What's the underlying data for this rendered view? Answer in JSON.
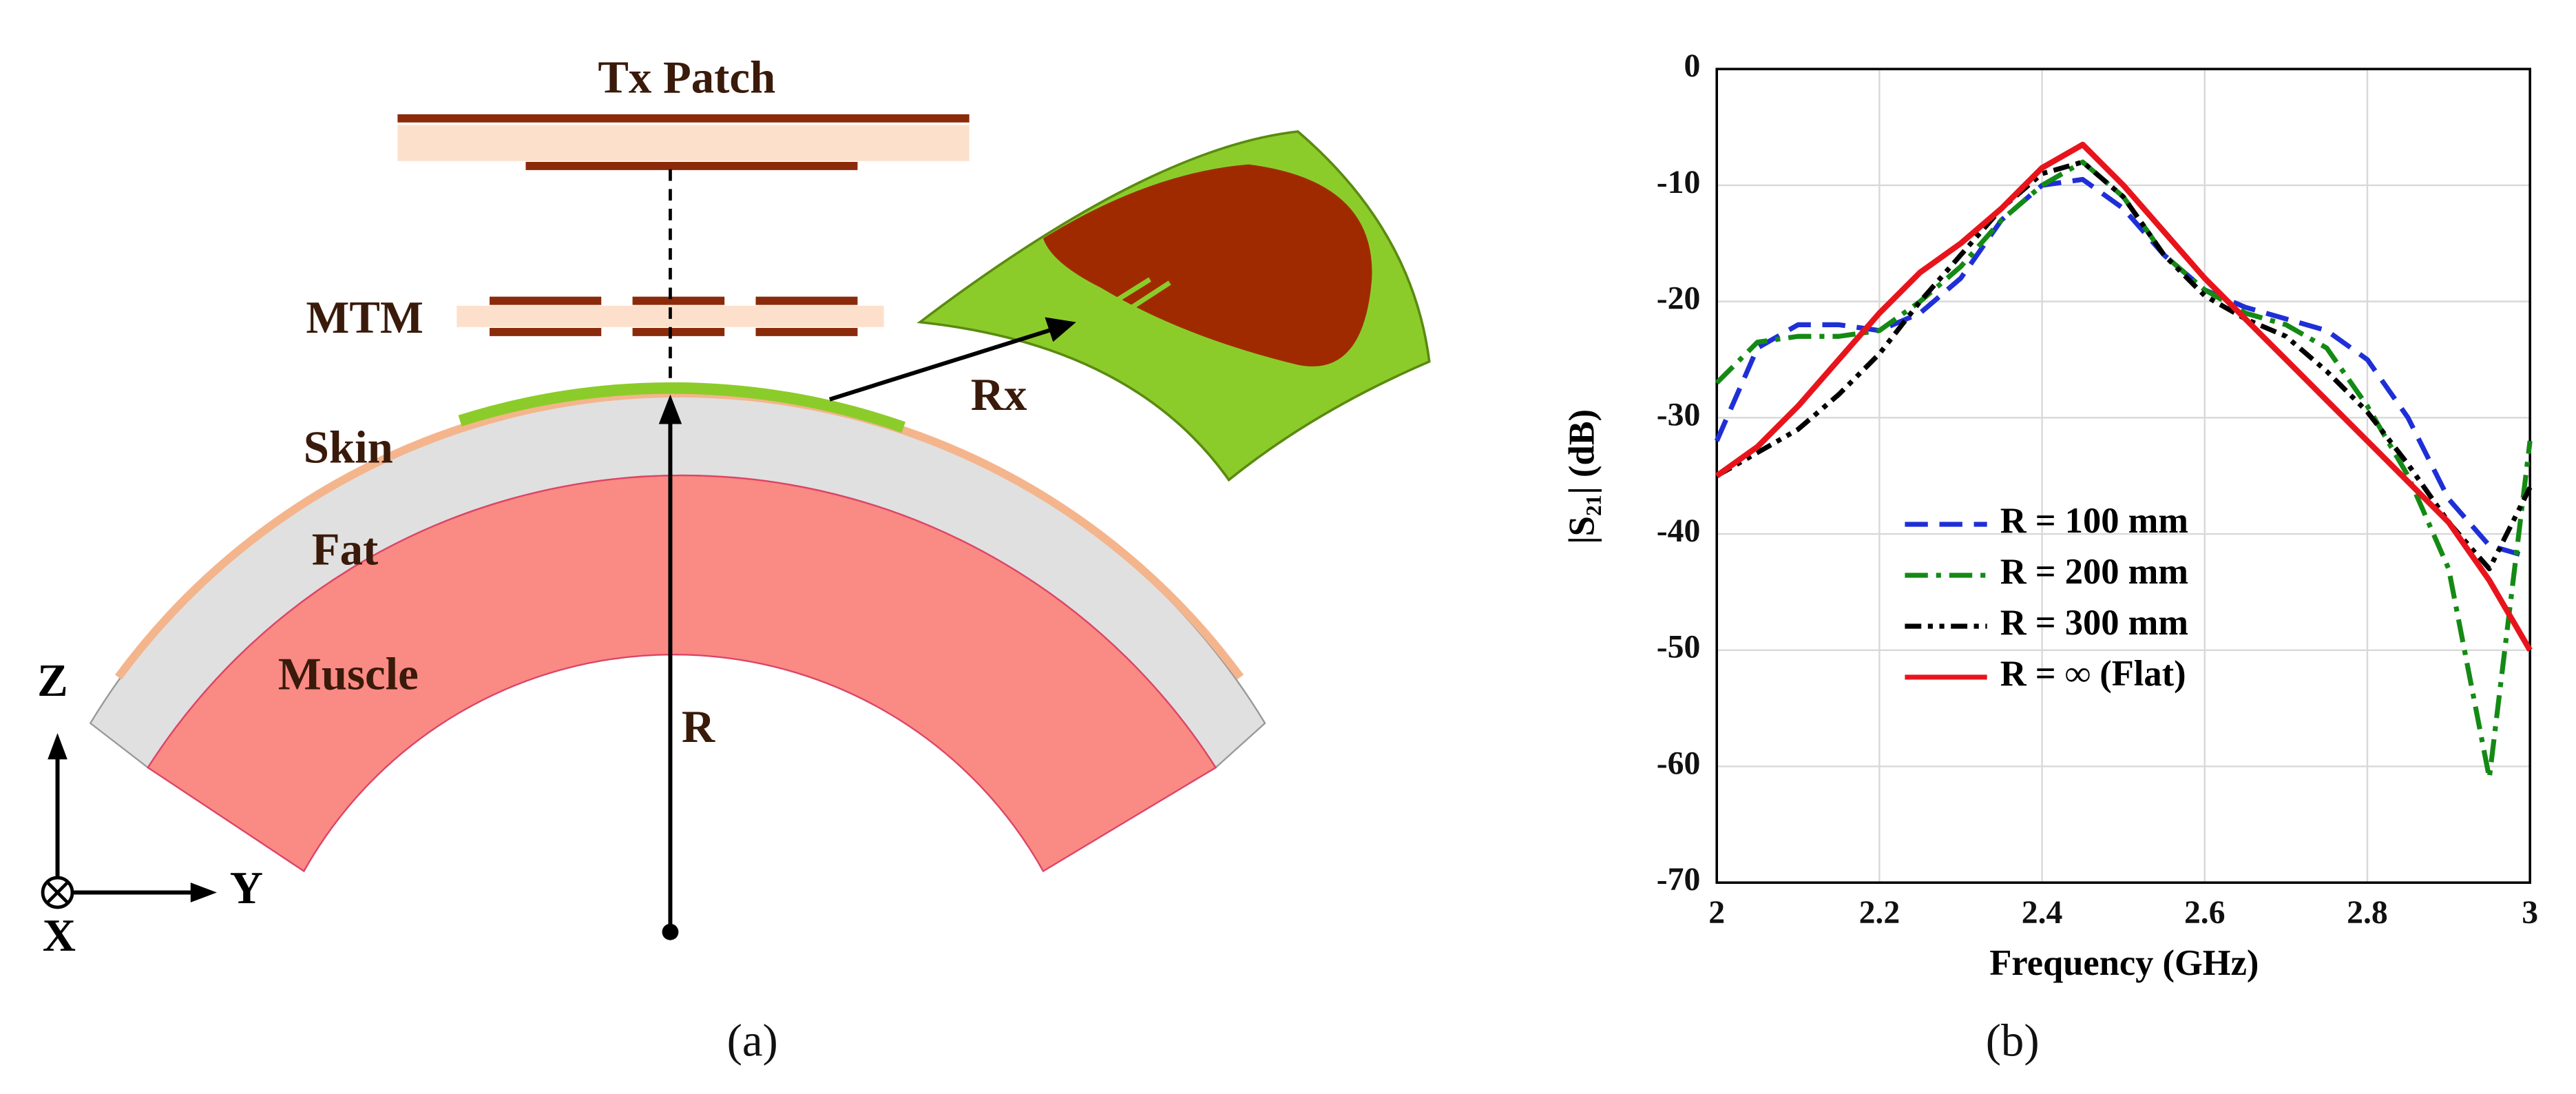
{
  "diagram": {
    "labels": {
      "tx": "Tx Patch",
      "mtm": "MTM",
      "skin": "Skin",
      "fat": "Fat",
      "muscle": "Muscle",
      "rx": "Rx",
      "radius": "R",
      "z": "Z",
      "y": "Y",
      "x": "X"
    },
    "caption": "(a)"
  },
  "chart_data": {
    "type": "line",
    "caption": "(b)",
    "x_label": "Frequency (GHz)",
    "y_label": "|S₂₁| (dB)",
    "x": [
      2.0,
      2.05,
      2.1,
      2.15,
      2.2,
      2.25,
      2.3,
      2.35,
      2.4,
      2.45,
      2.5,
      2.55,
      2.6,
      2.65,
      2.7,
      2.75,
      2.8,
      2.85,
      2.9,
      2.95,
      3.0
    ],
    "series": [
      {
        "name": "R = 100 mm",
        "color": "#1f2fd6",
        "style": "dashed",
        "values": [
          -32,
          -24,
          -22,
          -22,
          -22.5,
          -21,
          -18,
          -13,
          -10,
          -9.5,
          -12,
          -16,
          -19,
          -20.5,
          -21.5,
          -22.5,
          -25,
          -30,
          -37,
          -41,
          -42
        ]
      },
      {
        "name": "R = 200 mm",
        "color": "#148a14",
        "style": "dashdot",
        "values": [
          -27,
          -23.5,
          -23,
          -23,
          -22.5,
          -20,
          -17,
          -13,
          -10,
          -8,
          -11,
          -16,
          -19,
          -21,
          -22,
          -24,
          -29,
          -35,
          -43,
          -61,
          -32
        ]
      },
      {
        "name": "R = 300 mm",
        "color": "#000000",
        "style": "dashdotdot",
        "values": [
          -35,
          -33,
          -31,
          -28,
          -24.5,
          -20,
          -16,
          -12,
          -9,
          -8,
          -11,
          -16,
          -19.5,
          -21.5,
          -23,
          -26,
          -29.5,
          -34,
          -39,
          -43,
          -36
        ]
      },
      {
        "name": "R = ∞ (Flat)",
        "color": "#e8141c",
        "style": "solid",
        "values": [
          -35,
          -32.5,
          -29,
          -25,
          -21,
          -17.5,
          -15,
          -12,
          -8.5,
          -6.5,
          -10,
          -14,
          -18,
          -21.5,
          -25,
          -28.5,
          -32,
          -35.5,
          -39,
          -44,
          -50
        ]
      }
    ],
    "xlim": [
      2,
      3
    ],
    "xticks": [
      2,
      2.2,
      2.4,
      2.6,
      2.8,
      3
    ],
    "ylim": [
      -70,
      0
    ],
    "yticks": [
      0,
      -10,
      -20,
      -30,
      -40,
      -50,
      -60,
      -70
    ],
    "grid": true,
    "legend": "lower center"
  }
}
